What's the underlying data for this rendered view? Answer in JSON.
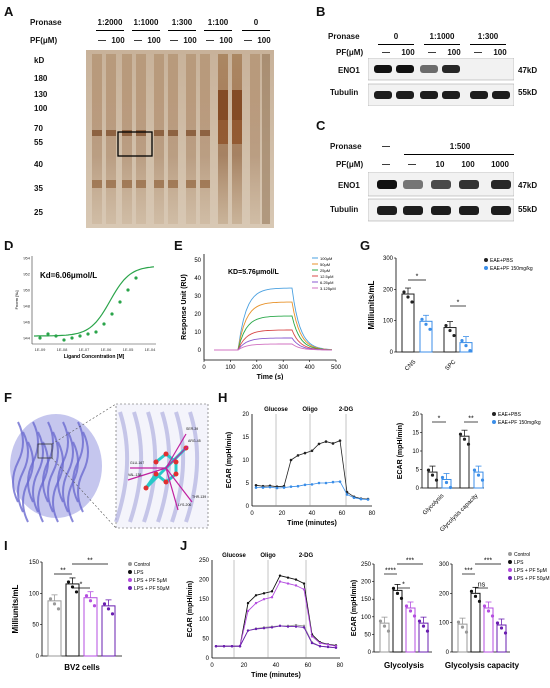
{
  "panels": {
    "A": {
      "label": "A",
      "row_labels": {
        "pronase": "Pronase",
        "pf": "PF(μM)",
        "kd": "kD"
      },
      "pronase_values": [
        "1:2000",
        "1:1000",
        "1:300",
        "1:100",
        "0"
      ],
      "pf_values": [
        "—",
        "100",
        "—",
        "100",
        "—",
        "100",
        "—",
        "100",
        "—",
        "100"
      ],
      "mw_markers": [
        "180",
        "130",
        "100",
        "70",
        "55",
        "40",
        "35",
        "25"
      ]
    },
    "B": {
      "label": "B",
      "row_labels": {
        "pronase": "Pronase",
        "pf": "PF(μM)"
      },
      "pronase_values": [
        "0",
        "1:1000",
        "1:300"
      ],
      "pf_values": [
        "—",
        "100",
        "—",
        "100",
        "—",
        "100"
      ],
      "bands": [
        {
          "name": "ENO1",
          "kd": "47kD"
        },
        {
          "name": "Tubulin",
          "kd": "55kD"
        }
      ]
    },
    "C": {
      "label": "C",
      "row_labels": {
        "pronase": "Pronase",
        "pf": "PF(μM)"
      },
      "pronase_values": [
        "—",
        "1:500"
      ],
      "pf_values": [
        "—",
        "—",
        "10",
        "100",
        "1000"
      ],
      "bands": [
        {
          "name": "ENO1",
          "kd": "47kD"
        },
        {
          "name": "Tubulin",
          "kd": "55kD"
        }
      ]
    },
    "D": {
      "label": "D",
      "kd_text": "Kd=6.06μmol/L",
      "xlabel": "Ligand Concentration [M]",
      "ylabel": "Fnorm [‰]",
      "xticks": [
        "1E-09",
        "1E-08",
        "1E-07",
        "1E-06",
        "1E-05",
        "1E-04"
      ],
      "yticks": [
        "944",
        "946",
        "948",
        "950",
        "952",
        "954"
      ]
    },
    "E": {
      "label": "E",
      "kd_text": "KD=5.76μmol/L",
      "xlabel": "Time (s)",
      "ylabel": "Response Unit (RU)",
      "xticks": [
        "0",
        "100",
        "200",
        "300",
        "400",
        "500"
      ],
      "yticks": [
        "0",
        "10",
        "20",
        "30",
        "40",
        "50"
      ],
      "legend": [
        "100μM",
        "50μM",
        "25μM",
        "12.5μM",
        "6.25μM",
        "3.125μM"
      ]
    },
    "F": {
      "label": "F",
      "residues": [
        "SER-39",
        "ARG-45",
        "VAL-138",
        "LYS-206",
        "THR-139",
        "GLU-167"
      ]
    },
    "G": {
      "label": "G",
      "ylabel": "Milliunits/mL",
      "yticks": [
        "0",
        "100",
        "200",
        "300"
      ],
      "categories": [
        "CNS",
        "SPC"
      ],
      "legend": [
        "EAE+PBS",
        "EAE+PF 150mg/kg"
      ],
      "sig": [
        "*",
        "*"
      ]
    },
    "H": {
      "label": "H",
      "ylabel": "ECAR (mpH/min)",
      "xlabel": "Time (minutes)",
      "xticks": [
        "0",
        "20",
        "40",
        "60",
        "80"
      ],
      "yticks": [
        "0",
        "5",
        "10",
        "15",
        "20"
      ],
      "injections": [
        "Glucose",
        "Oligo",
        "2-DG"
      ],
      "bar_ylabel": "ECAR (mpH/min)",
      "bar_yticks": [
        "0",
        "5",
        "10",
        "15",
        "20"
      ],
      "bar_categories": [
        "Glycolysis",
        "Glycolysis capacity"
      ],
      "legend": [
        "EAE+PBS",
        "EAE+PF 150mg/kg"
      ],
      "sig": [
        "*",
        "**"
      ]
    },
    "I": {
      "label": "I",
      "ylabel": "Milliunits/mL",
      "yticks": [
        "0",
        "50",
        "100",
        "150"
      ],
      "xlabel": "BV2 cells",
      "legend": [
        "Control",
        "LPS",
        "LPS + PF 5μM",
        "LPS + PF 50μM"
      ],
      "sig": [
        "**",
        "*",
        "**"
      ]
    },
    "J": {
      "label": "J",
      "ylabel": "ECAR (mpH/min)",
      "xlabel": "Time (minutes)",
      "xticks": [
        "0",
        "20",
        "40",
        "60",
        "80"
      ],
      "yticks": [
        "0",
        "50",
        "100",
        "150",
        "200",
        "250"
      ],
      "injections": [
        "Glucose",
        "Oligo",
        "2-DG"
      ],
      "bar1_title": "Glycolysis",
      "bar1_ylabel": "ECAR (mpH/min)",
      "bar1_yticks": [
        "0",
        "50",
        "100",
        "150",
        "200",
        "250"
      ],
      "bar1_sig": [
        "****",
        "*",
        "***"
      ],
      "bar2_title": "Glycolysis capacity",
      "bar2_yticks": [
        "0",
        "100",
        "200",
        "300"
      ],
      "bar2_sig": [
        "***",
        "ns",
        "***"
      ],
      "legend": [
        "Control",
        "LPS",
        "LPS + PF 5μM",
        "LPS + PF 50μM"
      ]
    }
  },
  "colors": {
    "pbs": "#222222",
    "pf": "#3b8ee8",
    "control": "#999999",
    "lps": "#111111",
    "pf5": "#b44ee0",
    "pf50": "#6a1fb0",
    "fit": "#2aa44a",
    "gel": "#b08a68"
  },
  "chart_data": [
    {
      "type": "bar",
      "panel": "G",
      "categories": [
        "CNS",
        "SPC"
      ],
      "series": [
        {
          "name": "EAE+PBS",
          "values": [
            185,
            78
          ]
        },
        {
          "name": "EAE+PF 150mg/kg",
          "values": [
            98,
            30
          ]
        }
      ],
      "ylim": [
        0,
        300
      ]
    },
    {
      "type": "bar",
      "panel": "H-right",
      "categories": [
        "Glycolysis",
        "Glycolysis capacity"
      ],
      "series": [
        {
          "name": "EAE+PBS",
          "values": [
            4.3,
            14
          ]
        },
        {
          "name": "EAE+PF 150mg/kg",
          "values": [
            2.3,
            4.3
          ]
        }
      ],
      "ylim": [
        0,
        20
      ]
    },
    {
      "type": "bar",
      "panel": "I",
      "categories": [
        "Control",
        "LPS",
        "LPS + PF 5μM",
        "LPS + PF 50μM"
      ],
      "values": [
        88,
        115,
        93,
        80
      ],
      "ylim": [
        0,
        150
      ]
    },
    {
      "type": "bar",
      "panel": "J-glycolysis",
      "categories": [
        "Control",
        "LPS",
        "LPS + PF 5μM",
        "LPS + PF 50μM"
      ],
      "values": [
        82,
        175,
        125,
        82
      ],
      "ylim": [
        0,
        250
      ]
    },
    {
      "type": "bar",
      "panel": "J-capacity",
      "categories": [
        "Control",
        "LPS",
        "LPS + PF 5μM",
        "LPS + PF 50μM"
      ],
      "values": [
        95,
        200,
        150,
        92
      ],
      "ylim": [
        0,
        300
      ]
    }
  ]
}
